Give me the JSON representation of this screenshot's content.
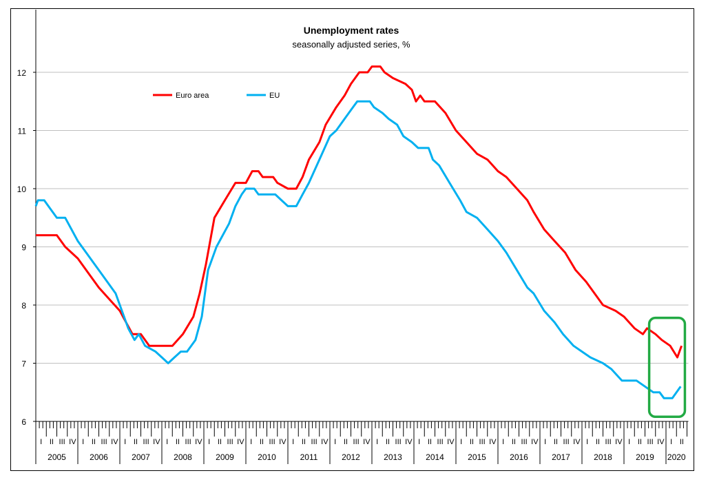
{
  "chart_data": {
    "type": "line",
    "title": "Unemployment rates",
    "subtitle": "seasonally adjusted series, %",
    "xlabel": "",
    "ylabel": "",
    "ylim": [
      6,
      12
    ],
    "yticks": [
      6,
      7,
      8,
      9,
      10,
      11,
      12
    ],
    "xlim": [
      2005,
      2020.5
    ],
    "years": [
      "2005",
      "2006",
      "2007",
      "2008",
      "2009",
      "2010",
      "2011",
      "2012",
      "2013",
      "2014",
      "2015",
      "2016",
      "2017",
      "2018",
      "2019",
      "2020"
    ],
    "quarters": [
      "I",
      "II",
      "III",
      "IV"
    ],
    "grid": true,
    "legend": "top-left",
    "highlight": {
      "from": 2019.6,
      "to": 2020.45,
      "color": "#22aa44"
    },
    "series": [
      {
        "name": "Euro area",
        "color": "#ff0000",
        "points": [
          [
            2005.0,
            9.2
          ],
          [
            2005.5,
            9.2
          ],
          [
            2005.7,
            9.0
          ],
          [
            2006.0,
            8.8
          ],
          [
            2006.5,
            8.3
          ],
          [
            2006.75,
            8.1
          ],
          [
            2007.0,
            7.9
          ],
          [
            2007.3,
            7.5
          ],
          [
            2007.5,
            7.5
          ],
          [
            2007.7,
            7.3
          ],
          [
            2008.25,
            7.3
          ],
          [
            2008.5,
            7.5
          ],
          [
            2008.75,
            7.8
          ],
          [
            2008.9,
            8.2
          ],
          [
            2009.05,
            8.7
          ],
          [
            2009.25,
            9.5
          ],
          [
            2009.5,
            9.8
          ],
          [
            2009.75,
            10.1
          ],
          [
            2010.0,
            10.1
          ],
          [
            2010.15,
            10.3
          ],
          [
            2010.3,
            10.3
          ],
          [
            2010.4,
            10.2
          ],
          [
            2010.65,
            10.2
          ],
          [
            2010.75,
            10.1
          ],
          [
            2011.0,
            10.0
          ],
          [
            2011.2,
            10.0
          ],
          [
            2011.35,
            10.2
          ],
          [
            2011.5,
            10.5
          ],
          [
            2011.75,
            10.8
          ],
          [
            2011.9,
            11.1
          ],
          [
            2012.15,
            11.4
          ],
          [
            2012.35,
            11.6
          ],
          [
            2012.5,
            11.8
          ],
          [
            2012.7,
            12.0
          ],
          [
            2012.9,
            12.0
          ],
          [
            2013.0,
            12.1
          ],
          [
            2013.2,
            12.1
          ],
          [
            2013.3,
            12.0
          ],
          [
            2013.5,
            11.9
          ],
          [
            2013.8,
            11.8
          ],
          [
            2013.95,
            11.7
          ],
          [
            2014.05,
            11.5
          ],
          [
            2014.15,
            11.6
          ],
          [
            2014.25,
            11.5
          ],
          [
            2014.5,
            11.5
          ],
          [
            2014.75,
            11.3
          ],
          [
            2015.0,
            11.0
          ],
          [
            2015.25,
            10.8
          ],
          [
            2015.5,
            10.6
          ],
          [
            2015.75,
            10.5
          ],
          [
            2016.0,
            10.3
          ],
          [
            2016.2,
            10.2
          ],
          [
            2016.45,
            10.0
          ],
          [
            2016.7,
            9.8
          ],
          [
            2016.85,
            9.6
          ],
          [
            2017.1,
            9.3
          ],
          [
            2017.35,
            9.1
          ],
          [
            2017.6,
            8.9
          ],
          [
            2017.85,
            8.6
          ],
          [
            2018.1,
            8.4
          ],
          [
            2018.3,
            8.2
          ],
          [
            2018.5,
            8.0
          ],
          [
            2018.8,
            7.9
          ],
          [
            2019.0,
            7.8
          ],
          [
            2019.25,
            7.6
          ],
          [
            2019.45,
            7.5
          ],
          [
            2019.55,
            7.6
          ],
          [
            2019.75,
            7.5
          ],
          [
            2019.9,
            7.4
          ],
          [
            2020.1,
            7.3
          ],
          [
            2020.27,
            7.1
          ],
          [
            2020.37,
            7.3
          ]
        ]
      },
      {
        "name": "EU",
        "color": "#00b0f0",
        "points": [
          [
            2005.0,
            9.7
          ],
          [
            2005.05,
            9.8
          ],
          [
            2005.2,
            9.8
          ],
          [
            2005.3,
            9.7
          ],
          [
            2005.5,
            9.5
          ],
          [
            2005.7,
            9.5
          ],
          [
            2006.0,
            9.1
          ],
          [
            2006.5,
            8.6
          ],
          [
            2006.9,
            8.2
          ],
          [
            2007.0,
            8.0
          ],
          [
            2007.2,
            7.6
          ],
          [
            2007.35,
            7.4
          ],
          [
            2007.45,
            7.5
          ],
          [
            2007.6,
            7.3
          ],
          [
            2007.85,
            7.2
          ],
          [
            2008.0,
            7.1
          ],
          [
            2008.15,
            7.0
          ],
          [
            2008.3,
            7.1
          ],
          [
            2008.45,
            7.2
          ],
          [
            2008.6,
            7.2
          ],
          [
            2008.8,
            7.4
          ],
          [
            2008.95,
            7.8
          ],
          [
            2009.1,
            8.6
          ],
          [
            2009.3,
            9.0
          ],
          [
            2009.6,
            9.4
          ],
          [
            2009.75,
            9.7
          ],
          [
            2009.9,
            9.9
          ],
          [
            2010.0,
            10.0
          ],
          [
            2010.2,
            10.0
          ],
          [
            2010.3,
            9.9
          ],
          [
            2010.7,
            9.9
          ],
          [
            2010.85,
            9.8
          ],
          [
            2011.0,
            9.7
          ],
          [
            2011.2,
            9.7
          ],
          [
            2011.35,
            9.9
          ],
          [
            2011.5,
            10.1
          ],
          [
            2011.75,
            10.5
          ],
          [
            2012.0,
            10.9
          ],
          [
            2012.15,
            11.0
          ],
          [
            2012.35,
            11.2
          ],
          [
            2012.55,
            11.4
          ],
          [
            2012.65,
            11.5
          ],
          [
            2012.95,
            11.5
          ],
          [
            2013.05,
            11.4
          ],
          [
            2013.25,
            11.3
          ],
          [
            2013.4,
            11.2
          ],
          [
            2013.6,
            11.1
          ],
          [
            2013.75,
            10.9
          ],
          [
            2013.95,
            10.8
          ],
          [
            2014.1,
            10.7
          ],
          [
            2014.35,
            10.7
          ],
          [
            2014.45,
            10.5
          ],
          [
            2014.6,
            10.4
          ],
          [
            2014.85,
            10.1
          ],
          [
            2015.1,
            9.8
          ],
          [
            2015.25,
            9.6
          ],
          [
            2015.5,
            9.5
          ],
          [
            2015.75,
            9.3
          ],
          [
            2016.0,
            9.1
          ],
          [
            2016.2,
            8.9
          ],
          [
            2016.45,
            8.6
          ],
          [
            2016.7,
            8.3
          ],
          [
            2016.85,
            8.2
          ],
          [
            2017.1,
            7.9
          ],
          [
            2017.35,
            7.7
          ],
          [
            2017.55,
            7.5
          ],
          [
            2017.8,
            7.3
          ],
          [
            2018.0,
            7.2
          ],
          [
            2018.2,
            7.1
          ],
          [
            2018.5,
            7.0
          ],
          [
            2018.7,
            6.9
          ],
          [
            2018.95,
            6.7
          ],
          [
            2019.3,
            6.7
          ],
          [
            2019.5,
            6.6
          ],
          [
            2019.7,
            6.5
          ],
          [
            2019.85,
            6.5
          ],
          [
            2019.95,
            6.4
          ],
          [
            2020.15,
            6.4
          ],
          [
            2020.35,
            6.6
          ]
        ]
      }
    ]
  }
}
